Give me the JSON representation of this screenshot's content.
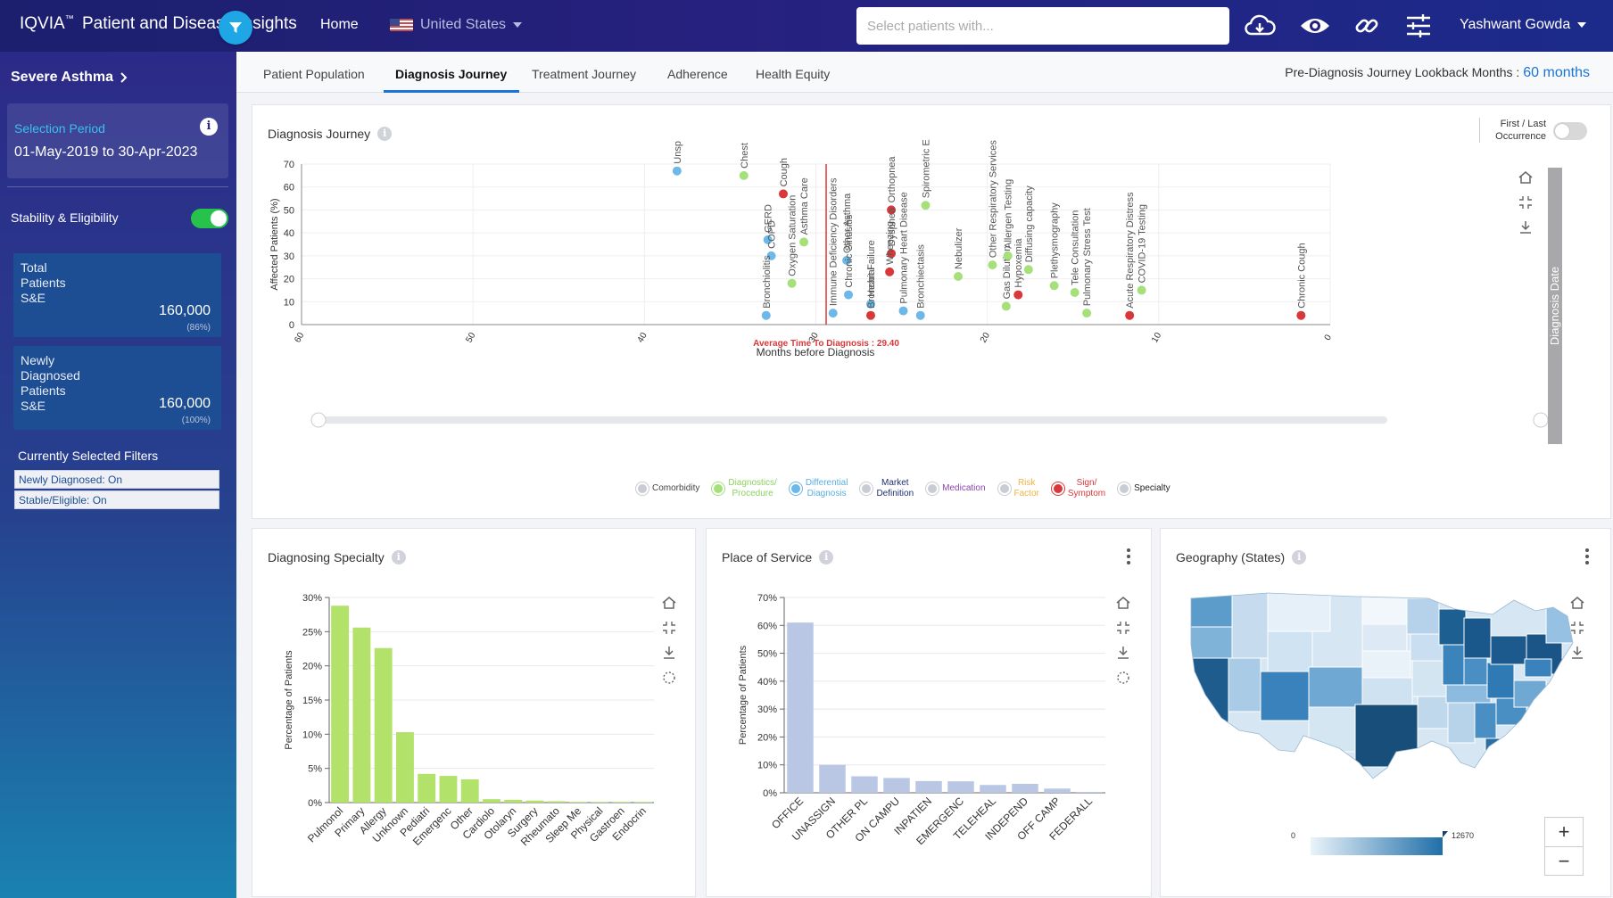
{
  "header": {
    "brand": "IQVIA",
    "brand_sup": "™",
    "app_title": "Patient and Disease Insights",
    "home": "Home",
    "country": "United States",
    "search_placeholder": "Select patients with...",
    "user": "Yashwant Gowda",
    "icons": [
      "cloud-download-icon",
      "eye-icon",
      "link-icon",
      "sliders-icon"
    ]
  },
  "sidebar": {
    "disease": "Severe Asthma",
    "selection_period_label": "Selection Period",
    "selection_period_value": "01-May-2019 to 30-Apr-2023",
    "stability_label": "Stability & Eligibility",
    "kpis": [
      {
        "label": "Total\nPatients\nS&E",
        "value": "160,000",
        "pct": "(86%)"
      },
      {
        "label": "Newly\nDiagnosed\nPatients\nS&E",
        "value": "160,000",
        "pct": "(100%)"
      }
    ],
    "filters_title": "Currently Selected Filters",
    "filters": [
      "Newly Diagnosed: On",
      "Stable/Eligible: On"
    ]
  },
  "tabs": {
    "items": [
      "Patient Population",
      "Diagnosis Journey",
      "Treatment Journey",
      "Adherence",
      "Health Equity"
    ],
    "active": "Diagnosis Journey",
    "lookback_label": "Pre-Diagnosis Journey Lookback Months :",
    "lookback_value": "60 months"
  },
  "journey": {
    "title": "Diagnosis Journey",
    "toggle_label_1": "First / Last",
    "toggle_label_2": "Occurrence",
    "right_axis_label": "Diagnosis Date",
    "avg_label": "Average Time To Diagnosis : 29.40",
    "legend": [
      {
        "label": "Comorbidity",
        "color": "#c9ccd4",
        "text_color": "#444"
      },
      {
        "label": "Diagnostics/\nProcedure",
        "color": "#a6e07a",
        "text_color": "#8fcf5e"
      },
      {
        "label": "Differential\nDiagnosis",
        "color": "#6cb8e8",
        "text_color": "#5aaee0"
      },
      {
        "label": "Market\nDefinition",
        "color": "#c9ccd4",
        "text_color": "#1d2f6b"
      },
      {
        "label": "Medication",
        "color": "#c9ccd4",
        "text_color": "#8e44ad"
      },
      {
        "label": "Risk\nFactor",
        "color": "#c9ccd4",
        "text_color": "#f0b440"
      },
      {
        "label": "Sign/\nSymptom",
        "color": "#d9383a",
        "text_color": "#d9383a"
      },
      {
        "label": "Specialty",
        "color": "#c9ccd4",
        "text_color": "#222"
      }
    ]
  },
  "specialty": {
    "title": "Diagnosing Specialty"
  },
  "pos": {
    "title": "Place of Service"
  },
  "geo": {
    "title": "Geography (States)",
    "legend_min": "0",
    "legend_max": "12670",
    "zoom_in": "+",
    "zoom_out": "−"
  },
  "chart_data": [
    {
      "type": "scatter",
      "name": "Diagnosis Journey",
      "xlabel": "Months before Diagnosis",
      "ylabel": "Affected Patients (%)",
      "xlim": [
        60,
        0
      ],
      "ylim": [
        0,
        70
      ],
      "xticks": [
        60,
        50,
        40,
        30,
        20,
        10,
        0
      ],
      "yticks": [
        0,
        10,
        20,
        30,
        40,
        50,
        60,
        70
      ],
      "reference_line": {
        "x": 29.4,
        "label": "Average Time To Diagnosis : 29.40"
      },
      "points": [
        {
          "x": 38.1,
          "y": 67,
          "label": "Unsp",
          "category": "Differential Diagnosis"
        },
        {
          "x": 34.2,
          "y": 65,
          "label": "Chest",
          "category": "Diagnostics/Procedure"
        },
        {
          "x": 32.8,
          "y": 37,
          "label": "GERD",
          "category": "Differential Diagnosis"
        },
        {
          "x": 32.6,
          "y": 30,
          "label": "COPD",
          "category": "Differential Diagnosis"
        },
        {
          "x": 31.9,
          "y": 57,
          "label": "Cough",
          "category": "Sign/Symptom"
        },
        {
          "x": 32.9,
          "y": 4,
          "label": "Bronchiolitis",
          "category": "Differential Diagnosis"
        },
        {
          "x": 31.4,
          "y": 18,
          "label": "Oxygen Saturation",
          "category": "Diagnostics/Procedure"
        },
        {
          "x": 30.7,
          "y": 36,
          "label": "Asthma Care",
          "category": "Diagnostics/Procedure"
        },
        {
          "x": 29.0,
          "y": 5,
          "label": "Immune Deficiency Disorders",
          "category": "Differential Diagnosis"
        },
        {
          "x": 28.2,
          "y": 28,
          "label": "Other Asthma",
          "category": "Differential Diagnosis"
        },
        {
          "x": 28.1,
          "y": 13,
          "label": "Chronic Sinusitis",
          "category": "Differential Diagnosis"
        },
        {
          "x": 26.8,
          "y": 9,
          "label": "Heart Failure",
          "category": "Differential Diagnosis"
        },
        {
          "x": 26.8,
          "y": 4,
          "label": "Bronchial",
          "category": "Sign/Symptom"
        },
        {
          "x": 25.6,
          "y": 50,
          "label": "Orthopnea",
          "category": "Sign/Symptom"
        },
        {
          "x": 25.6,
          "y": 31,
          "label": "Dyspnea",
          "category": "Sign/Symptom"
        },
        {
          "x": 25.7,
          "y": 23,
          "label": "Wheezing",
          "category": "Sign/Symptom"
        },
        {
          "x": 24.9,
          "y": 6,
          "label": "Pulmonary Heart Disease",
          "category": "Differential Diagnosis"
        },
        {
          "x": 23.9,
          "y": 4,
          "label": "Bronchiectasis",
          "category": "Differential Diagnosis"
        },
        {
          "x": 23.6,
          "y": 52,
          "label": "Spirometric E",
          "category": "Diagnostics/Procedure"
        },
        {
          "x": 21.7,
          "y": 21,
          "label": "Nebulizer",
          "category": "Diagnostics/Procedure"
        },
        {
          "x": 19.7,
          "y": 26,
          "label": "Other Respiratory Services",
          "category": "Diagnostics/Procedure"
        },
        {
          "x": 18.9,
          "y": 8,
          "label": "Gas Dilution",
          "category": "Diagnostics/Procedure"
        },
        {
          "x": 18.8,
          "y": 30,
          "label": "Allergen Testing",
          "category": "Diagnostics/Procedure"
        },
        {
          "x": 18.2,
          "y": 13,
          "label": "Hypoxemia",
          "category": "Sign/Symptom"
        },
        {
          "x": 17.6,
          "y": 24,
          "label": "Diffusing capacity",
          "category": "Diagnostics/Procedure"
        },
        {
          "x": 16.1,
          "y": 17,
          "label": "Plethysmography",
          "category": "Diagnostics/Procedure"
        },
        {
          "x": 14.9,
          "y": 14,
          "label": "Tele Consultation",
          "category": "Diagnostics/Procedure"
        },
        {
          "x": 14.2,
          "y": 5,
          "label": "Pulmonary Stress Test",
          "category": "Diagnostics/Procedure"
        },
        {
          "x": 11.7,
          "y": 4,
          "label": "Acute Respiratory Distress",
          "category": "Sign/Symptom"
        },
        {
          "x": 11.0,
          "y": 15,
          "label": "COVID-19 Testing",
          "category": "Diagnostics/Procedure"
        },
        {
          "x": 1.7,
          "y": 4,
          "label": "Chronic Cough",
          "category": "Sign/Symptom"
        }
      ]
    },
    {
      "type": "bar",
      "name": "Diagnosing Specialty",
      "ylabel": "Percentage of Patients",
      "ylim": [
        0,
        30
      ],
      "yticks": [
        0,
        5,
        10,
        15,
        20,
        25,
        30
      ],
      "categories": [
        "Pulmonol",
        "Primary",
        "Allergy",
        "Unknown",
        "Pediatri",
        "Emergenc",
        "Other",
        "Cardiolo",
        "Otolaryn",
        "Surgery",
        "Rheumato",
        "Sleep Me",
        "Physical",
        "Gastroen",
        "Endocrin"
      ],
      "values": [
        28.8,
        25.6,
        22.6,
        10.3,
        4.2,
        3.9,
        3.4,
        0.5,
        0.4,
        0.3,
        0.2,
        0.1,
        0.1,
        0.1,
        0.1
      ],
      "color": "#b3e26b"
    },
    {
      "type": "bar",
      "name": "Place of Service",
      "ylabel": "Percentage of Patients",
      "ylim": [
        0,
        70
      ],
      "yticks": [
        0,
        10,
        20,
        30,
        40,
        50,
        60,
        70
      ],
      "categories": [
        "OFFICE",
        "UNASSIGN",
        "OTHER PL",
        "ON CAMPU",
        "INPATIEN",
        "EMERGENC",
        "TELEHEAL",
        "INDEPEND",
        "OFF CAMP",
        "FEDERALL"
      ],
      "values": [
        61,
        10,
        5.9,
        5.3,
        4.2,
        4.1,
        2.8,
        3.2,
        1.5,
        0.3
      ],
      "color": "#b9c6e4"
    }
  ]
}
